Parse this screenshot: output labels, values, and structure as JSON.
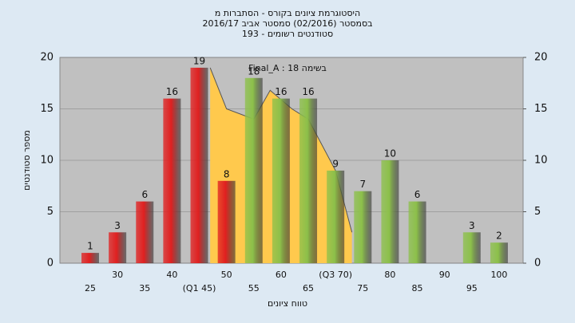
{
  "chart_data": {
    "type": "bar",
    "title": [
      "היסטוגרמת ציונים בקורס - הסתברות מ",
      "בסמסטר  (02/2016)  סמסטר אביב 2016/17",
      "סטודנטים רשומים - 193"
    ],
    "annotation": "Final_A : בשימה 18",
    "x_label": "טווח ציונים",
    "y_label": "מספר סטודנטים",
    "categories": [
      "25",
      "30",
      "35",
      "40",
      "(Q1 45)",
      "50",
      "55",
      "60",
      "65",
      "(Q3 70)",
      "75",
      "80",
      "85",
      "90",
      "95",
      "100"
    ],
    "values": [
      1,
      3,
      6,
      16,
      19,
      8,
      18,
      16,
      16,
      9,
      7,
      10,
      6,
      0,
      3,
      2
    ],
    "colors": [
      "#e02020",
      "#e02020",
      "#e02020",
      "#e02020",
      "#e02020",
      "#e02020",
      "#8cc04a",
      "#8cc04a",
      "#8cc04a",
      "#8cc04a",
      "#8cc04a",
      "#8cc04a",
      "#8cc04a",
      "#8cc04a",
      "#8cc04a",
      "#8cc04a"
    ],
    "curve": {
      "color": "#ffc94d",
      "x": [
        47,
        50,
        55,
        58,
        62,
        65,
        70,
        73
      ],
      "values": [
        19,
        15,
        14,
        16.8,
        15,
        14,
        9,
        3
      ]
    },
    "ylim": [
      0,
      20
    ],
    "yticks": [
      0,
      5,
      10,
      15,
      20
    ],
    "y2lim": [
      0,
      20
    ],
    "y2ticks": [
      0,
      5,
      10,
      15,
      20
    ],
    "grid": true
  }
}
